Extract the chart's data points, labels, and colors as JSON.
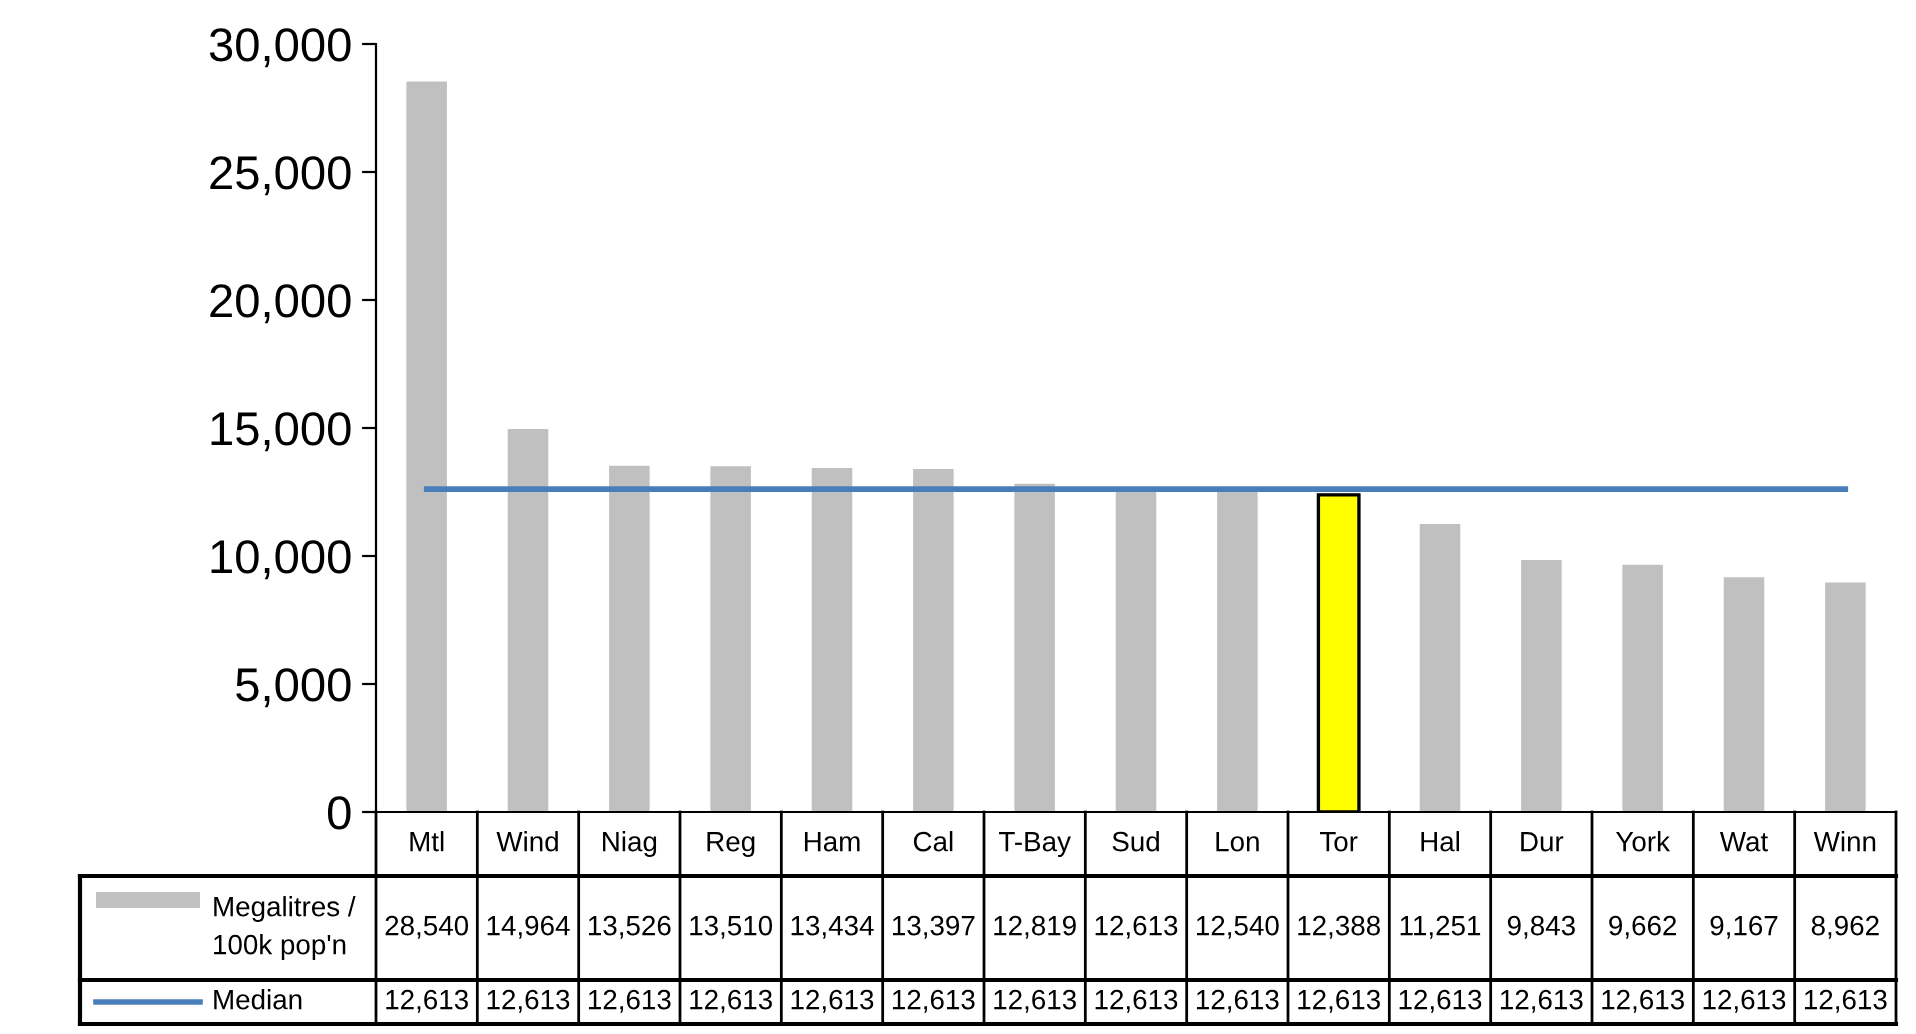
{
  "chart_data": {
    "type": "bar",
    "categories": [
      "Mtl",
      "Wind",
      "Niag",
      "Reg",
      "Ham",
      "Cal",
      "T-Bay",
      "Sud",
      "Lon",
      "Tor",
      "Hal",
      "Dur",
      "York",
      "Wat",
      "Winn"
    ],
    "series": [
      {
        "name": "Megalitres / 100k pop'n",
        "color": "#c0c0c0",
        "colors": [
          "#c0c0c0",
          "#c0c0c0",
          "#c0c0c0",
          "#c0c0c0",
          "#c0c0c0",
          "#c0c0c0",
          "#c0c0c0",
          "#c0c0c0",
          "#c0c0c0",
          "#ffff00",
          "#c0c0c0",
          "#c0c0c0",
          "#c0c0c0",
          "#c0c0c0",
          "#c0c0c0"
        ],
        "values": [
          28540,
          14964,
          13526,
          13510,
          13434,
          13397,
          12819,
          12613,
          12540,
          12388,
          11251,
          9843,
          9662,
          9167,
          8962
        ],
        "value_labels": [
          "28,540",
          "14,964",
          "13,526",
          "13,510",
          "13,434",
          "13,397",
          "12,819",
          "12,613",
          "12,540",
          "12,388",
          "11,251",
          "9,843",
          "9,662",
          "9,167",
          "8,962"
        ]
      },
      {
        "name": "Median",
        "type": "line",
        "color": "#4a7ebb",
        "values": [
          12613,
          12613,
          12613,
          12613,
          12613,
          12613,
          12613,
          12613,
          12613,
          12613,
          12613,
          12613,
          12613,
          12613,
          12613
        ],
        "value_labels": [
          "12,613",
          "12,613",
          "12,613",
          "12,613",
          "12,613",
          "12,613",
          "12,613",
          "12,613",
          "12,613",
          "12,613",
          "12,613",
          "12,613",
          "12,613",
          "12,613",
          "12,613"
        ]
      }
    ],
    "ylim": [
      0,
      30000
    ],
    "yticks": [
      0,
      {
        "value": 5000,
        "label": "5,000"
      },
      {
        "value": 10000,
        "label": "10,000"
      },
      {
        "value": 15000,
        "label": "15,000"
      },
      {
        "value": 20000,
        "label": "20,000"
      },
      {
        "value": 25000,
        "label": "25,000"
      },
      {
        "value": 30000,
        "label": "30,000"
      }
    ],
    "legend": "bottom left"
  }
}
